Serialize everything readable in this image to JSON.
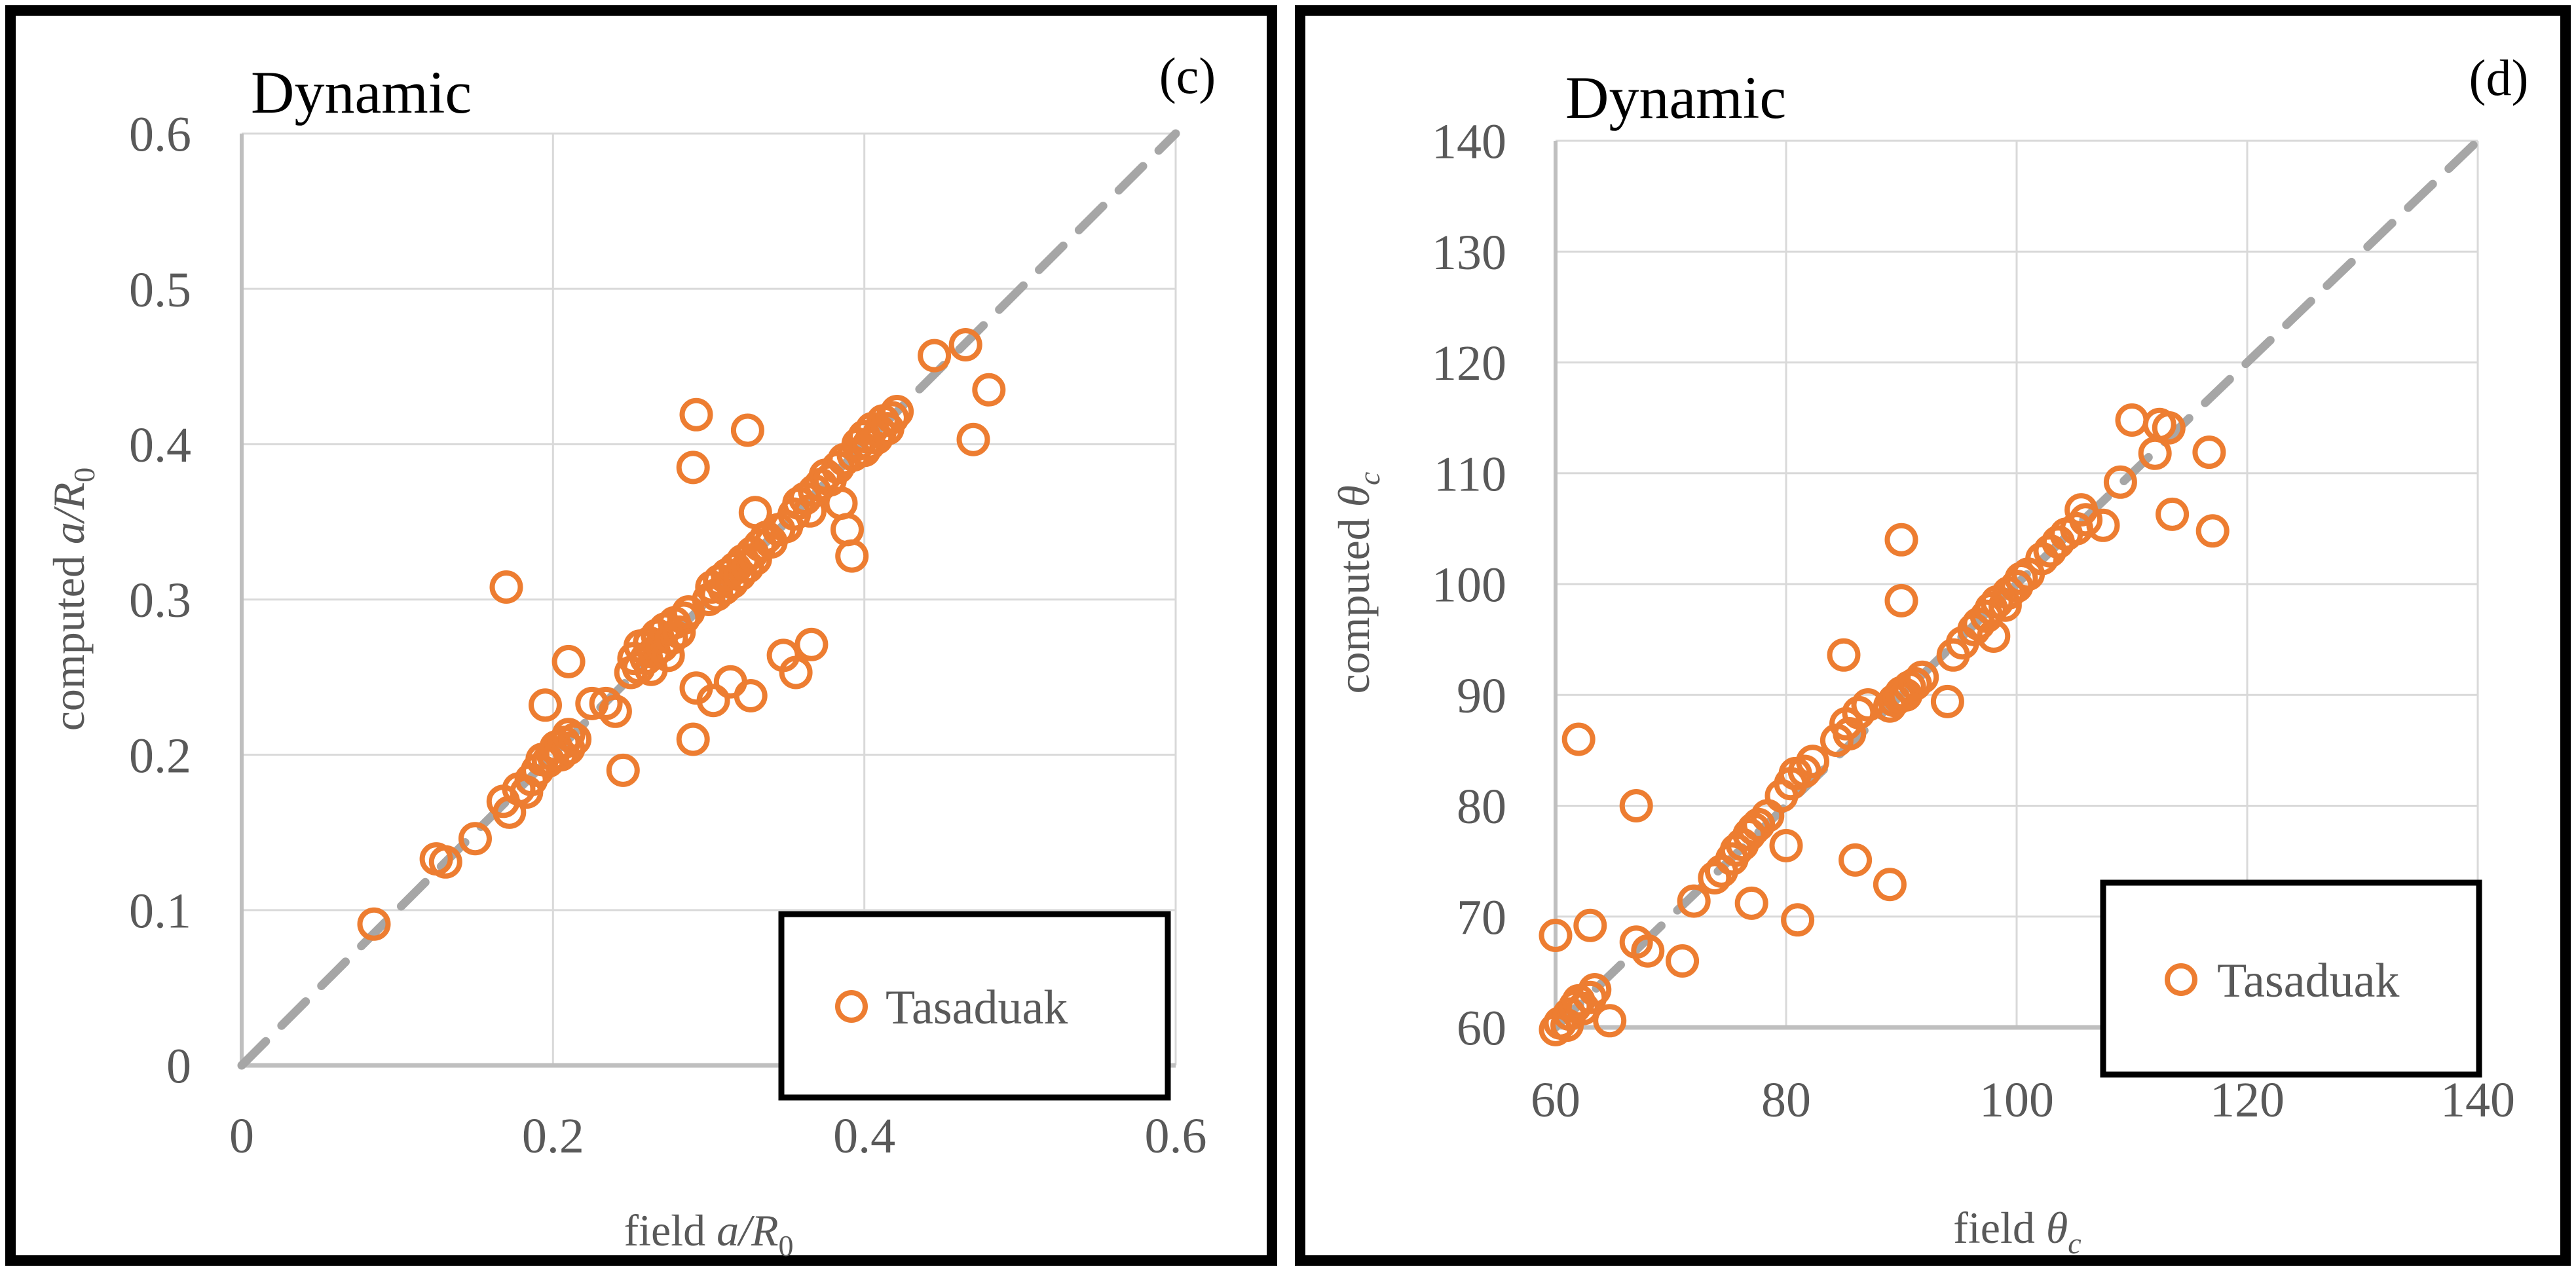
{
  "figure": {
    "marker_shape": "open-circle",
    "colors": {
      "marker": "#ED7D31",
      "gridline": "#D9D9D9",
      "axis_line": "#BFBFBF",
      "identity_line": "#A6A6A6",
      "tick_text": "#595959",
      "title_text": "#000000",
      "frame": "#000000",
      "background": "#FFFFFF"
    }
  },
  "chart_data": [
    {
      "type": "scatter",
      "panel_label": "(c)",
      "title": "Dynamic",
      "legend": {
        "label": "Tasaduak",
        "position": "lower-right"
      },
      "x_axis": {
        "label_prefix": "field ",
        "label_italic": "a/R",
        "label_sub": "0",
        "lim": [
          0,
          0.6
        ],
        "ticks": [
          "0",
          "0.2",
          "0.4",
          "0.6"
        ],
        "tick_values": [
          0,
          0.2,
          0.4,
          0.6
        ],
        "gridline_values": [
          0.2,
          0.4,
          0.6
        ]
      },
      "y_axis": {
        "label_prefix": "computed ",
        "label_italic": "a/R",
        "label_sub": "0",
        "lim": [
          0,
          0.6
        ],
        "ticks": [
          "0",
          "0.1",
          "0.2",
          "0.3",
          "0.4",
          "0.5",
          "0.6"
        ],
        "tick_values": [
          0,
          0.1,
          0.2,
          0.3,
          0.4,
          0.5,
          0.6
        ],
        "gridline_values": [
          0.1,
          0.2,
          0.3,
          0.4,
          0.5,
          0.6
        ]
      },
      "identity_line": {
        "from": [
          0,
          0
        ],
        "to": [
          0.6,
          0.6
        ],
        "style": "dashed"
      },
      "grid": true,
      "series": [
        {
          "name": "Tasaduak",
          "marker": "open-circle",
          "color": "#ED7D31",
          "points": [
            [
              0.085,
              0.091
            ],
            [
              0.125,
              0.133
            ],
            [
              0.131,
              0.131
            ],
            [
              0.15,
              0.146
            ],
            [
              0.168,
              0.17
            ],
            [
              0.172,
              0.163
            ],
            [
              0.178,
              0.178
            ],
            [
              0.183,
              0.176
            ],
            [
              0.186,
              0.184
            ],
            [
              0.19,
              0.19
            ],
            [
              0.193,
              0.197
            ],
            [
              0.17,
              0.308
            ],
            [
              0.197,
              0.196
            ],
            [
              0.2,
              0.2
            ],
            [
              0.202,
              0.205
            ],
            [
              0.205,
              0.2
            ],
            [
              0.207,
              0.208
            ],
            [
              0.21,
              0.204
            ],
            [
              0.21,
              0.213
            ],
            [
              0.214,
              0.21
            ],
            [
              0.195,
              0.232
            ],
            [
              0.21,
              0.26
            ],
            [
              0.225,
              0.233
            ],
            [
              0.234,
              0.233
            ],
            [
              0.24,
              0.228
            ],
            [
              0.245,
              0.19
            ],
            [
              0.25,
              0.253
            ],
            [
              0.252,
              0.262
            ],
            [
              0.255,
              0.256
            ],
            [
              0.256,
              0.27
            ],
            [
              0.26,
              0.262
            ],
            [
              0.262,
              0.272
            ],
            [
              0.263,
              0.255
            ],
            [
              0.265,
              0.266
            ],
            [
              0.267,
              0.277
            ],
            [
              0.27,
              0.27
            ],
            [
              0.272,
              0.281
            ],
            [
              0.274,
              0.264
            ],
            [
              0.276,
              0.275
            ],
            [
              0.278,
              0.285
            ],
            [
              0.281,
              0.279
            ],
            [
              0.284,
              0.288
            ],
            [
              0.287,
              0.292
            ],
            [
              0.29,
              0.385
            ],
            [
              0.292,
              0.419
            ],
            [
              0.325,
              0.409
            ],
            [
              0.29,
              0.21
            ],
            [
              0.292,
              0.243
            ],
            [
              0.303,
              0.235
            ],
            [
              0.314,
              0.247
            ],
            [
              0.327,
              0.238
            ],
            [
              0.348,
              0.264
            ],
            [
              0.356,
              0.253
            ],
            [
              0.366,
              0.271
            ],
            [
              0.3,
              0.3
            ],
            [
              0.302,
              0.308
            ],
            [
              0.305,
              0.303
            ],
            [
              0.307,
              0.312
            ],
            [
              0.31,
              0.307
            ],
            [
              0.312,
              0.316
            ],
            [
              0.315,
              0.311
            ],
            [
              0.317,
              0.32
            ],
            [
              0.32,
              0.316
            ],
            [
              0.322,
              0.325
            ],
            [
              0.325,
              0.321
            ],
            [
              0.328,
              0.33
            ],
            [
              0.33,
              0.326
            ],
            [
              0.333,
              0.335
            ],
            [
              0.33,
              0.356
            ],
            [
              0.337,
              0.34
            ],
            [
              0.34,
              0.337
            ],
            [
              0.345,
              0.345
            ],
            [
              0.35,
              0.347
            ],
            [
              0.355,
              0.355
            ],
            [
              0.358,
              0.362
            ],
            [
              0.362,
              0.365
            ],
            [
              0.365,
              0.357
            ],
            [
              0.368,
              0.37
            ],
            [
              0.372,
              0.374
            ],
            [
              0.375,
              0.38
            ],
            [
              0.378,
              0.377
            ],
            [
              0.385,
              0.362
            ],
            [
              0.389,
              0.345
            ],
            [
              0.392,
              0.328
            ],
            [
              0.383,
              0.385
            ],
            [
              0.387,
              0.39
            ],
            [
              0.393,
              0.393
            ],
            [
              0.396,
              0.4
            ],
            [
              0.4,
              0.396
            ],
            [
              0.4,
              0.405
            ],
            [
              0.403,
              0.4
            ],
            [
              0.405,
              0.41
            ],
            [
              0.408,
              0.404
            ],
            [
              0.41,
              0.408
            ],
            [
              0.412,
              0.415
            ],
            [
              0.415,
              0.41
            ],
            [
              0.418,
              0.417
            ],
            [
              0.421,
              0.421
            ],
            [
              0.445,
              0.457
            ],
            [
              0.465,
              0.464
            ],
            [
              0.48,
              0.435
            ],
            [
              0.47,
              0.403
            ]
          ]
        }
      ]
    },
    {
      "type": "scatter",
      "panel_label": "(d)",
      "title": "Dynamic",
      "legend": {
        "label": "Tasaduak",
        "position": "lower-right"
      },
      "x_axis": {
        "label_prefix": "field ",
        "label_italic": "θ",
        "label_sub": "c",
        "lim": [
          60,
          140
        ],
        "ticks": [
          "60",
          "80",
          "100",
          "120",
          "140"
        ],
        "tick_values": [
          60,
          80,
          100,
          120,
          140
        ],
        "gridline_values": [
          80,
          100,
          120,
          140
        ]
      },
      "y_axis": {
        "label_prefix": "computed ",
        "label_italic": "θ",
        "label_sub": "c",
        "lim": [
          60,
          140
        ],
        "ticks": [
          "60",
          "70",
          "80",
          "90",
          "100",
          "110",
          "120",
          "130",
          "140"
        ],
        "tick_values": [
          60,
          70,
          80,
          90,
          100,
          110,
          120,
          130,
          140
        ],
        "gridline_values": [
          70,
          80,
          90,
          100,
          110,
          120,
          130,
          140
        ]
      },
      "identity_line": {
        "from": [
          60,
          60
        ],
        "to": [
          140,
          140
        ],
        "style": "dashed"
      },
      "grid": true,
      "series": [
        {
          "name": "Tasaduak",
          "marker": "open-circle",
          "color": "#ED7D31",
          "points": [
            [
              60,
              59.8
            ],
            [
              60.4,
              60.4
            ],
            [
              61,
              60.2
            ],
            [
              61.2,
              61.2
            ],
            [
              61.7,
              61.9
            ],
            [
              62,
              62.4
            ],
            [
              62.4,
              61.7
            ],
            [
              63,
              62.7
            ],
            [
              63.4,
              63.4
            ],
            [
              64.7,
              60.6
            ],
            [
              60,
              68.3
            ],
            [
              63,
              69.2
            ],
            [
              62,
              86
            ],
            [
              67,
              80
            ],
            [
              67,
              67.7
            ],
            [
              68,
              66.9
            ],
            [
              71,
              66
            ],
            [
              72,
              71.4
            ],
            [
              73.8,
              73.5
            ],
            [
              74.4,
              74.1
            ],
            [
              75.3,
              75.2
            ],
            [
              75.7,
              76
            ],
            [
              76.2,
              76.5
            ],
            [
              76.8,
              77.4
            ],
            [
              77.2,
              77.9
            ],
            [
              77.6,
              78.3
            ],
            [
              78.4,
              79.1
            ],
            [
              79.6,
              80.9
            ],
            [
              80.4,
              82
            ],
            [
              80.8,
              82.9
            ],
            [
              81.6,
              83.1
            ],
            [
              82.3,
              84
            ],
            [
              77,
              71.2
            ],
            [
              80,
              76.4
            ],
            [
              81,
              69.7
            ],
            [
              86,
              75.1
            ],
            [
              89,
              72.9
            ],
            [
              85,
              93.6
            ],
            [
              90,
              104
            ],
            [
              90,
              98.5
            ],
            [
              84.4,
              85.9
            ],
            [
              85.2,
              87.4
            ],
            [
              85.5,
              86.5
            ],
            [
              86.3,
              88.4
            ],
            [
              87.1,
              89.1
            ],
            [
              89,
              89
            ],
            [
              89.4,
              89.5
            ],
            [
              89.8,
              89.8
            ],
            [
              90,
              90.2
            ],
            [
              90.4,
              90
            ],
            [
              90.7,
              90.7
            ],
            [
              91.2,
              91
            ],
            [
              91.8,
              91.6
            ],
            [
              94,
              89.4
            ],
            [
              98,
              95.3
            ],
            [
              94.5,
              93.6
            ],
            [
              95.3,
              94.7
            ],
            [
              96.3,
              95.9
            ],
            [
              96.7,
              96.4
            ],
            [
              97.4,
              97.1
            ],
            [
              97.8,
              97.8
            ],
            [
              98.3,
              98.4
            ],
            [
              99,
              98.1
            ],
            [
              99.3,
              99.2
            ],
            [
              100,
              99.8
            ],
            [
              100.4,
              100.5
            ],
            [
              101,
              100.9
            ],
            [
              102.2,
              102.3
            ],
            [
              102.9,
              103
            ],
            [
              103.6,
              103.8
            ],
            [
              104.3,
              104.5
            ],
            [
              105.2,
              105
            ],
            [
              106,
              105.8
            ],
            [
              105.6,
              106.7
            ],
            [
              109,
              109.2
            ],
            [
              107.5,
              105.3
            ],
            [
              113.5,
              106.3
            ],
            [
              117,
              104.8
            ],
            [
              110,
              114.8
            ],
            [
              112.4,
              114.4
            ],
            [
              113.2,
              114.1
            ],
            [
              112,
              111.8
            ],
            [
              116.7,
              111.9
            ]
          ]
        }
      ]
    }
  ]
}
